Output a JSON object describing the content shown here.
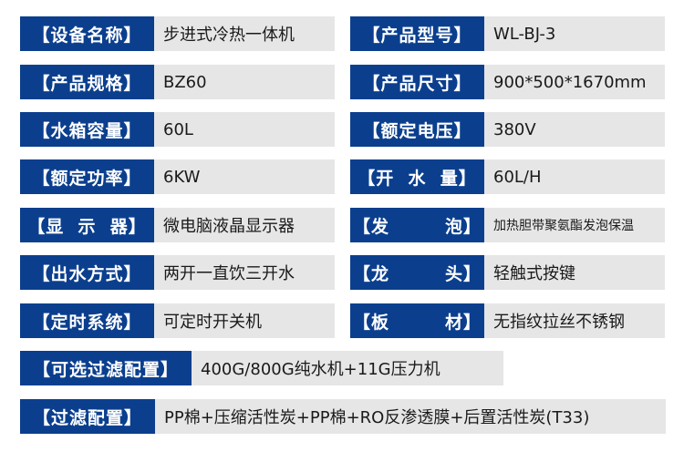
{
  "colors": {
    "label_bg": "#0b3f8e",
    "value_bg": "#e6e6e6"
  },
  "specs": [
    {
      "label": "【设备名称】",
      "value": "步进式冷热一体机"
    },
    {
      "label": "【产品型号】",
      "value": "WL-BJ-3"
    },
    {
      "label": "【产品规格】",
      "value": "BZ60"
    },
    {
      "label": "【产品尺寸】",
      "value": "900*500*1670mm"
    },
    {
      "label": "【水箱容量】",
      "value": "60L"
    },
    {
      "label": "【额定电压】",
      "value": "380V"
    },
    {
      "label": "【额定功率】",
      "value": "6KW"
    },
    {
      "label": "【开  水  量】",
      "value": "60L/H"
    },
    {
      "label": "【显  示  器】",
      "value": "微电脑液晶显示器"
    },
    {
      "label": "【发        泡】",
      "value": "加热胆带聚氨酯发泡保温"
    },
    {
      "label": "【出水方式】",
      "value": "两开一直饮三开水"
    },
    {
      "label": "【龙        头】",
      "value": "轻触式按键"
    },
    {
      "label": "【定时系统】",
      "value": "可定时开关机"
    },
    {
      "label": "【板        材】",
      "value": "无指纹拉丝不锈钢"
    },
    {
      "label": "【可选过滤配置】",
      "value": "400G/800G纯水机+11G压力机"
    },
    {
      "label": "【过滤配置】",
      "value": "PP棉+压缩活性炭+PP棉+RO反渗透膜+后置活性炭(T33)"
    }
  ]
}
